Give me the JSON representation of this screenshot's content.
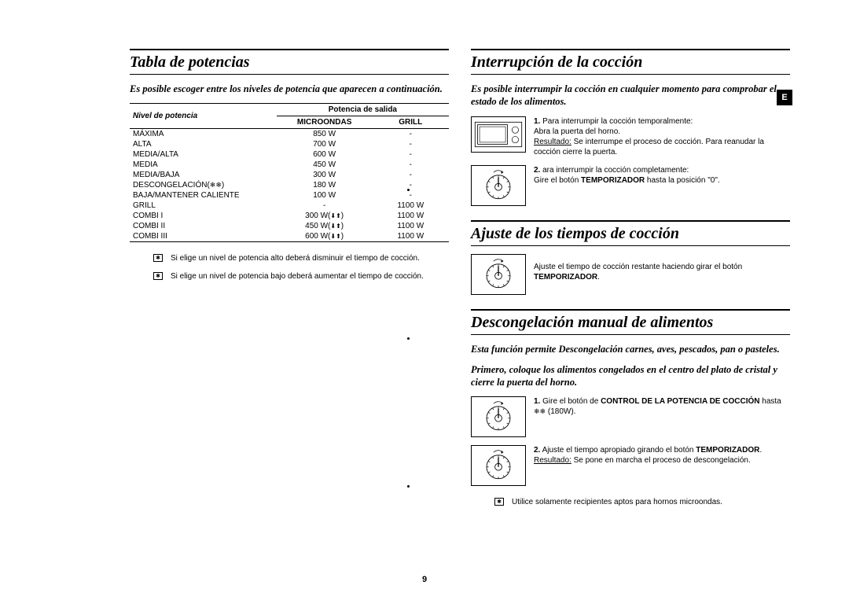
{
  "page_number": "9",
  "tab_label": "E",
  "left": {
    "title": "Tabla de potencias",
    "intro": "Es posible escoger entre los niveles de potencia que aparecen a continuación.",
    "table": {
      "header": {
        "level": "Nivel de potencia",
        "output": "Potencia de salida",
        "microwave": "MICROONDAS",
        "grill": "GRILL"
      },
      "rows": [
        {
          "level": "MÁXIMA",
          "microwave": "850 W",
          "grill": "-",
          "defrost_icon": false
        },
        {
          "level": "ALTA",
          "microwave": "700 W",
          "grill": "-",
          "defrost_icon": false
        },
        {
          "level": "MEDIA/ALTA",
          "microwave": "600 W",
          "grill": "-",
          "defrost_icon": false
        },
        {
          "level": "MEDIA",
          "microwave": "450 W",
          "grill": "-",
          "defrost_icon": false
        },
        {
          "level": "MEDIA/BAJA",
          "microwave": "300 W",
          "grill": "-",
          "defrost_icon": false
        },
        {
          "level": "DESCONGELACIÓN(     )",
          "microwave": "180 W",
          "grill": "-",
          "defrost_icon": true
        },
        {
          "level": "BAJA/MANTENER CALIENTE",
          "microwave": "100 W",
          "grill": "-",
          "defrost_icon": false
        },
        {
          "level": "GRILL",
          "microwave": "-",
          "grill": "1100 W",
          "defrost_icon": false
        },
        {
          "level": "COMBI I",
          "microwave": "300 W(      )",
          "grill": "1100 W",
          "defrost_icon": false
        },
        {
          "level": "COMBI II",
          "microwave": "450 W(      )",
          "grill": "1100 W",
          "defrost_icon": false
        },
        {
          "level": "COMBI III",
          "microwave": "600 W(      )",
          "grill": "1100 W",
          "defrost_icon": false
        }
      ]
    },
    "notes": [
      "Si elige un nivel de potencia alto deberá disminuir el tiempo de cocción.",
      "Si elige un nivel de potencia bajo deberá aumentar el tiempo de cocción."
    ]
  },
  "right": {
    "interrupt": {
      "title": "Interrupción de la cocción",
      "intro": "Es posible interrumpir la cocción en cualquier momento para comprobar el estado de los alimentos.",
      "steps": [
        {
          "num": "1.",
          "img": "microwave",
          "prefix": "Para interrumpir la cocción temporalmente:",
          "line2": "Abra la puerta del horno.",
          "res_label": "Resultado:",
          "res_text": " Se interrumpe el proceso de cocción. Para reanudar la cocción cierre la puerta."
        },
        {
          "num": "2.",
          "img": "dial",
          "prefix": "ara interrumpir la cocción completamente:",
          "line2_html": "Gire el botón <b>TEMPORIZADOR</b> hasta la posición \"0\"."
        }
      ]
    },
    "adjust": {
      "title": "Ajuste de los tiempos de cocción",
      "step": {
        "img": "dial",
        "text_prefix": "Ajuste el tiempo de cocción restante haciendo girar el botón ",
        "bold": "TEMPORIZADOR",
        "suffix": "."
      }
    },
    "defrost": {
      "title": "Descongelación manual de alimentos",
      "intro1": "Esta función permite Descongelación carnes, aves,  pescados, pan o pasteles.",
      "intro2": "Primero, coloque los alimentos congelados en el centro del plato de cristal y cierre la puerta del horno.",
      "steps": [
        {
          "num": "1.",
          "img": "dial",
          "text_prefix": "Gire el botón de ",
          "b1": "CONTROL DE LA POTENCIA DE COCCIÓN",
          "mid": " hasta ",
          "suffix": " (180W)."
        },
        {
          "num": "2.",
          "img": "dial",
          "text_prefix": "Ajuste el tiempo apropiado girando el botón ",
          "b1": "TEMPORIZADOR",
          "suffix": ".",
          "res_label": "Resultado:",
          "res_text": " Se pone en marcha el proceso de descongelación."
        }
      ],
      "note": "Utilice solamente recipientes aptos para hornos microondas."
    }
  }
}
